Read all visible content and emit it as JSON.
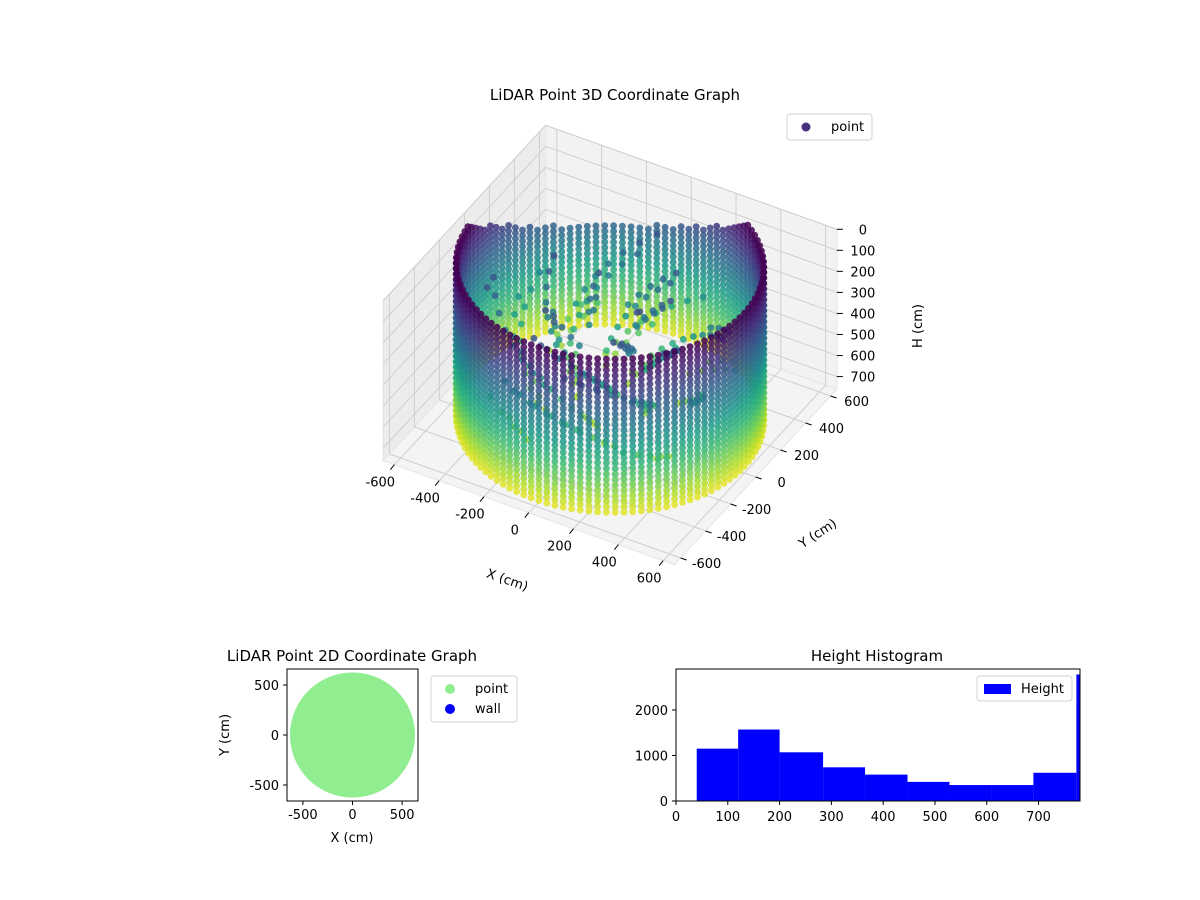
{
  "chart_data": [
    {
      "type": "scatter",
      "title": "LiDAR Point 3D Coordinate Graph",
      "xlabel": "X (cm)",
      "ylabel": "Y (cm)",
      "zlabel": "H (cm)",
      "xticks": [
        -600,
        -400,
        -200,
        0,
        200,
        400,
        600
      ],
      "yticks": [
        -600,
        -400,
        -200,
        0,
        200,
        400,
        600
      ],
      "zticks": [
        0,
        100,
        200,
        300,
        400,
        500,
        600,
        700
      ],
      "xlim": [
        -650,
        650
      ],
      "ylim": [
        -650,
        650
      ],
      "zlim": [
        0,
        760
      ],
      "z_inverted": true,
      "colormap": "viridis",
      "grid": true,
      "legend": {
        "position": "top-right",
        "entries": [
          {
            "label": "point",
            "color": "#46327e"
          }
        ]
      },
      "series": [
        {
          "name": "point",
          "description_shape": "cylindrical wall radius 600 spanning height 0-760 plus inner interior points",
          "radius": 600,
          "height_range": [
            0,
            760
          ]
        }
      ]
    },
    {
      "type": "scatter",
      "title": "LiDAR Point 2D Coordinate Graph",
      "xlabel": "X (cm)",
      "ylabel": "Y (cm)",
      "xticks": [
        -500,
        0,
        500
      ],
      "yticks": [
        -500,
        0,
        500
      ],
      "xlim": [
        -660,
        660
      ],
      "ylim": [
        -660,
        660
      ],
      "legend": {
        "position": "outside-right",
        "entries": [
          {
            "label": "point",
            "color": "#90ee90"
          },
          {
            "label": "wall",
            "color": "#0000ff"
          }
        ]
      },
      "series": [
        {
          "name": "point",
          "color": "#90ee90",
          "shape": "filled disk",
          "radius": 630
        },
        {
          "name": "wall",
          "color": "#0000ff",
          "points": []
        }
      ]
    },
    {
      "type": "bar",
      "title": "Height Histogram",
      "xlabel": "",
      "ylabel": "",
      "xticks": [
        0,
        100,
        200,
        300,
        400,
        500,
        600,
        700
      ],
      "yticks": [
        0,
        1000,
        2000
      ],
      "xlim": [
        0,
        780
      ],
      "ylim": [
        0,
        2900
      ],
      "legend": {
        "position": "top-right",
        "entries": [
          {
            "label": "Height",
            "color": "#0000ff"
          }
        ]
      },
      "bins": [
        {
          "x0": 40,
          "x1": 120,
          "value": 1150
        },
        {
          "x0": 120,
          "x1": 200,
          "value": 1570
        },
        {
          "x0": 200,
          "x1": 284,
          "value": 1070
        },
        {
          "x0": 284,
          "x1": 365,
          "value": 740
        },
        {
          "x0": 365,
          "x1": 447,
          "value": 580
        },
        {
          "x0": 447,
          "x1": 528,
          "value": 420
        },
        {
          "x0": 528,
          "x1": 610,
          "value": 350
        },
        {
          "x0": 610,
          "x1": 690,
          "value": 350
        },
        {
          "x0": 690,
          "x1": 773,
          "value": 620
        },
        {
          "x0": 773,
          "x1": 780,
          "value": 2780
        }
      ],
      "color": "#0000ff"
    }
  ]
}
